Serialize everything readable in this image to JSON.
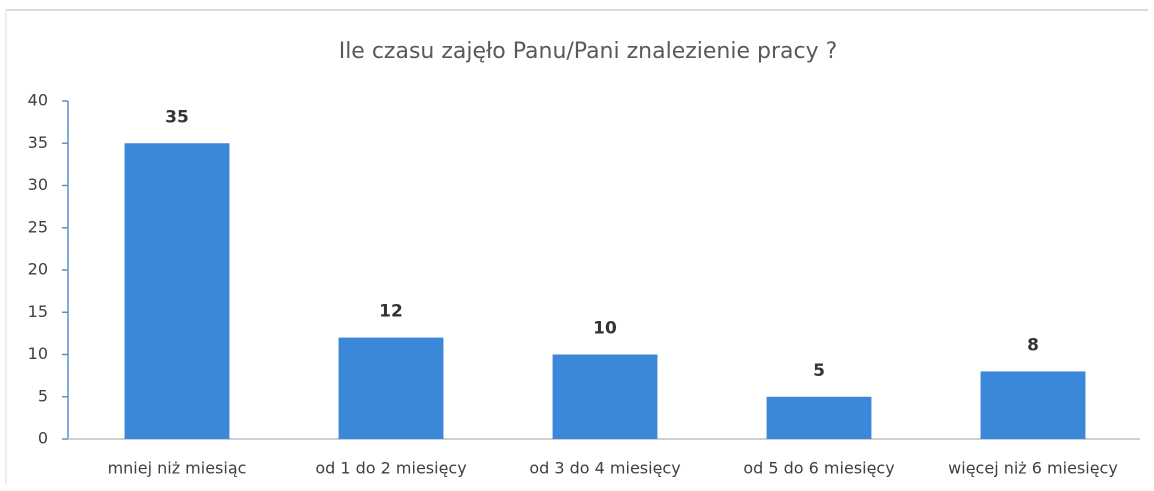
{
  "chart_data": {
    "type": "bar",
    "title": "Ile czasu zajęło Panu/Pani znalezienie pracy ?",
    "categories": [
      "mniej niż miesiąc",
      "od 1 do 2 miesięcy",
      "od 3 do 4 miesięcy",
      "od 5 do 6 miesięcy",
      "więcej niż 6 miesięcy"
    ],
    "values": [
      35,
      12,
      10,
      5,
      8
    ],
    "color": "#3b87d9",
    "ylim": [
      0,
      40
    ],
    "yticks": [
      0,
      5,
      10,
      15,
      20,
      25,
      30,
      35,
      40
    ],
    "grid": false
  }
}
